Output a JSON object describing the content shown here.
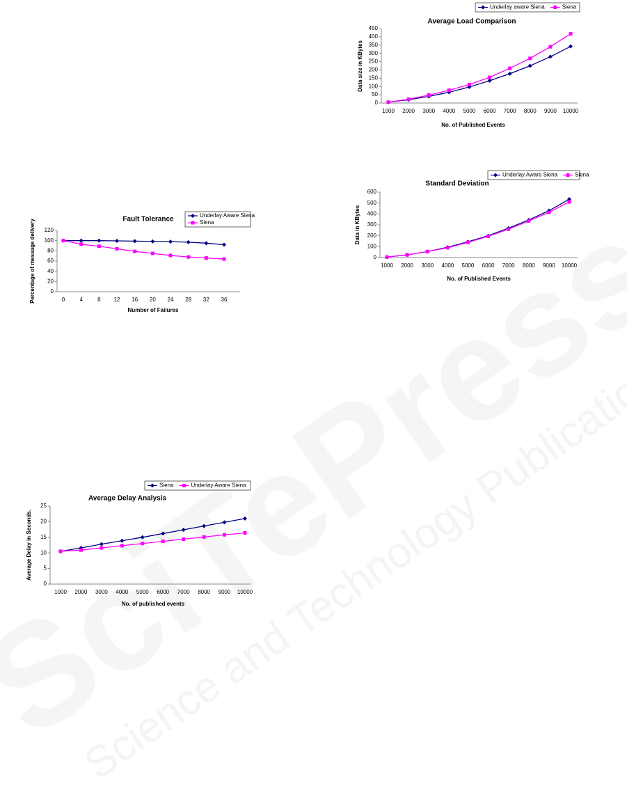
{
  "watermark": {
    "title": "SciTePress",
    "subtitle": "Science and Technology Publications"
  },
  "chart_data": [
    {
      "type": "line",
      "title": "Fault Tolerance",
      "x_label": "Number of Failures",
      "y_label": "Percentage of message delivery",
      "categories": [
        "0",
        "4",
        "8",
        "12",
        "16",
        "20",
        "24",
        "28",
        "32",
        "36"
      ],
      "series": [
        {
          "name": "Underlay Aware Siena",
          "color": "#000080",
          "marker": "diamond",
          "values": [
            100,
            100,
            100,
            99.5,
            99,
            98.5,
            98,
            97,
            95,
            92
          ]
        },
        {
          "name": "Siena",
          "color": "#ff00ff",
          "marker": "square",
          "values": [
            100,
            93,
            89,
            84,
            79,
            75,
            71,
            68,
            66,
            64
          ]
        }
      ],
      "ylim": [
        0,
        120
      ],
      "yticks": [
        0,
        20,
        40,
        60,
        80,
        100,
        120
      ]
    },
    {
      "type": "line",
      "title": "Average Delay Analysis",
      "x_label": "No. of published events",
      "y_label": "Average Delay in Seconds.",
      "categories": [
        "1000",
        "2000",
        "3000",
        "4000",
        "5000",
        "6000",
        "7000",
        "8000",
        "9000",
        "10000"
      ],
      "series": [
        {
          "name": "Siena",
          "color": "#000080",
          "marker": "diamond",
          "values": [
            10.5,
            11.6,
            12.8,
            13.9,
            15,
            16.2,
            17.4,
            18.6,
            19.8,
            21
          ]
        },
        {
          "name": "Underlay Aware Siena",
          "color": "#ff00ff",
          "marker": "square",
          "values": [
            10.5,
            10.9,
            11.6,
            12.3,
            13,
            13.7,
            14.4,
            15.1,
            15.8,
            16.4
          ]
        }
      ],
      "ylim": [
        0,
        25
      ],
      "yticks": [
        0,
        5,
        10,
        15,
        20,
        25
      ]
    },
    {
      "type": "line",
      "title": "Average Load Comparison",
      "x_label": "No. of Published Events",
      "y_label": "Data size in KBytes",
      "categories": [
        "1000",
        "2000",
        "3000",
        "4000",
        "5000",
        "6000",
        "7000",
        "8000",
        "9000",
        "10000"
      ],
      "series": [
        {
          "name": "Underlay aware Siena",
          "color": "#000080",
          "marker": "diamond",
          "values": [
            5,
            20,
            40,
            65,
            97,
            135,
            177,
            225,
            280,
            342
          ]
        },
        {
          "name": "Siena",
          "color": "#ff00ff",
          "marker": "square",
          "values": [
            5,
            23,
            48,
            77,
            112,
            155,
            210,
            270,
            340,
            418
          ]
        }
      ],
      "ylim": [
        0,
        450
      ],
      "yticks": [
        0,
        50,
        100,
        150,
        200,
        250,
        300,
        350,
        400,
        450
      ]
    },
    {
      "type": "line",
      "title": "Standard Deviation",
      "x_label": "No. of Published Events",
      "y_label": "Data in KBytes",
      "categories": [
        "1000",
        "2000",
        "3000",
        "4000",
        "5000",
        "6000",
        "7000",
        "8000",
        "9000",
        "10000"
      ],
      "series": [
        {
          "name": "Underlay Aware Siena",
          "color": "#000080",
          "marker": "diamond",
          "values": [
            5,
            25,
            55,
            95,
            145,
            200,
            270,
            345,
            430,
            535
          ]
        },
        {
          "name": "Siena",
          "color": "#ff00ff",
          "marker": "square",
          "values": [
            5,
            25,
            55,
            90,
            140,
            195,
            260,
            335,
            415,
            510
          ]
        }
      ],
      "ylim": [
        0,
        600
      ],
      "yticks": [
        0,
        100,
        200,
        300,
        400,
        500,
        600
      ]
    }
  ]
}
